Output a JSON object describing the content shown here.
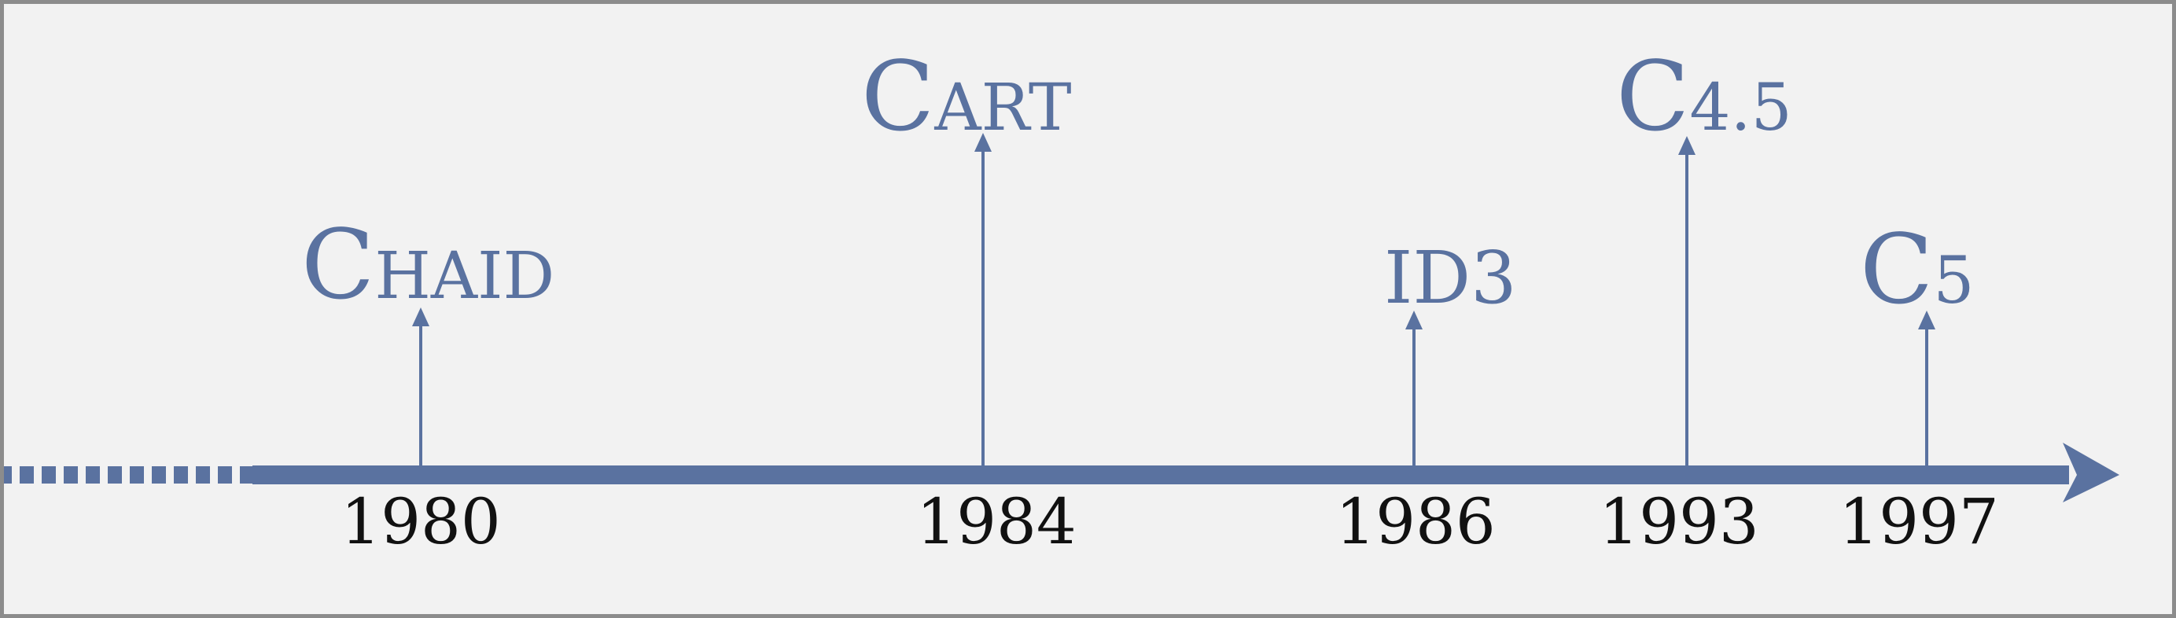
{
  "colors": {
    "accent": "#5a72a0",
    "background": "#f2f2f2",
    "border": "#8c8c8c",
    "year_text": "#111111"
  },
  "axis": {
    "direction": "right",
    "dashed_start": true
  },
  "events": [
    {
      "id": "chaid",
      "year": "1980",
      "label_big": "C",
      "label_small": "HAID",
      "stem": "short"
    },
    {
      "id": "cart",
      "year": "1984",
      "label_big": "C",
      "label_small": "ART",
      "stem": "tall"
    },
    {
      "id": "id3",
      "year": "1986",
      "label_big": "ID3",
      "label_small": "",
      "stem": "short"
    },
    {
      "id": "c45",
      "year": "1993",
      "label_big": "C",
      "label_small": "4.5",
      "stem": "tall"
    },
    {
      "id": "c5",
      "year": "1997",
      "label_big": "C",
      "label_small": "5",
      "stem": "short"
    }
  ]
}
